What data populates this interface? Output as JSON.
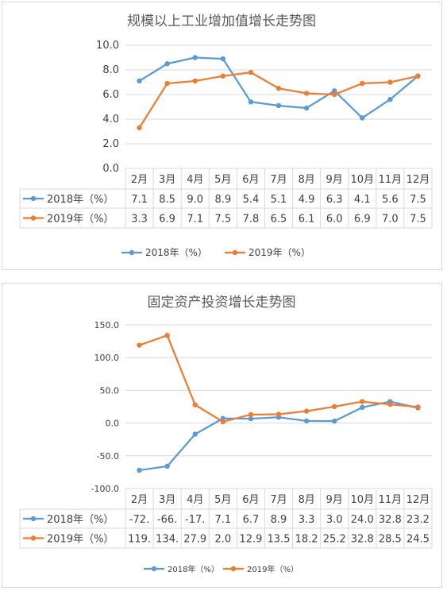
{
  "chart_data": [
    {
      "type": "line",
      "title": "规模以上工业增加值增长走势图",
      "categories": [
        "2月",
        "3月",
        "4月",
        "5月",
        "6月",
        "7月",
        "8月",
        "9月",
        "10月",
        "11月",
        "12月"
      ],
      "series": [
        {
          "name": "2018年（%）",
          "color": "#5b9bd5",
          "values": [
            7.1,
            8.5,
            9.0,
            8.9,
            5.4,
            5.1,
            4.9,
            6.3,
            4.1,
            5.6,
            7.5
          ],
          "labels": [
            "7.1",
            "8.5",
            "9.0",
            "8.9",
            "5.4",
            "5.1",
            "4.9",
            "6.3",
            "4.1",
            "5.6",
            "7.5"
          ]
        },
        {
          "name": "2019年（%）",
          "color": "#ed7d31",
          "values": [
            3.3,
            6.9,
            7.1,
            7.5,
            7.8,
            6.5,
            6.1,
            6.0,
            6.9,
            7.0,
            7.5
          ],
          "labels": [
            "3.3",
            "6.9",
            "7.1",
            "7.5",
            "7.8",
            "6.5",
            "6.1",
            "6.0",
            "6.9",
            "7.0",
            "7.5"
          ]
        }
      ],
      "ylim": [
        0,
        10
      ],
      "yticks": [
        "0.0",
        "2.0",
        "4.0",
        "6.0",
        "8.0",
        "10.0"
      ],
      "legend_position": "bottom",
      "grid": true,
      "data_table": true
    },
    {
      "type": "line",
      "title": "固定资产投资增长走势图",
      "categories": [
        "2月",
        "3月",
        "4月",
        "5月",
        "6月",
        "7月",
        "8月",
        "9月",
        "10月",
        "11月",
        "12月"
      ],
      "series": [
        {
          "name": "2018年（%）",
          "color": "#5b9bd5",
          "values": [
            -72,
            -66,
            -17,
            7.1,
            6.7,
            8.9,
            3.3,
            3.0,
            24.0,
            32.8,
            23.2
          ],
          "labels": [
            "-72.",
            "-66.",
            "-17.",
            "7.1",
            "6.7",
            "8.9",
            "3.3",
            "3.0",
            "24.0",
            "32.8",
            "23.2"
          ]
        },
        {
          "name": "2019年（%）",
          "color": "#ed7d31",
          "values": [
            119,
            134,
            27.9,
            2.0,
            12.9,
            13.5,
            18.2,
            25.2,
            32.8,
            28.5,
            24.5
          ],
          "labels": [
            "119.",
            "134.",
            "27.9",
            "2.0",
            "12.9",
            "13.5",
            "18.2",
            "25.2",
            "32.8",
            "28.5",
            "24.5"
          ]
        }
      ],
      "ylim": [
        -100,
        150
      ],
      "yticks": [
        "-100.0",
        "-50.0",
        "0.0",
        "50.0",
        "100.0",
        "150.0"
      ],
      "legend_position": "bottom",
      "grid": true,
      "data_table": true
    }
  ]
}
